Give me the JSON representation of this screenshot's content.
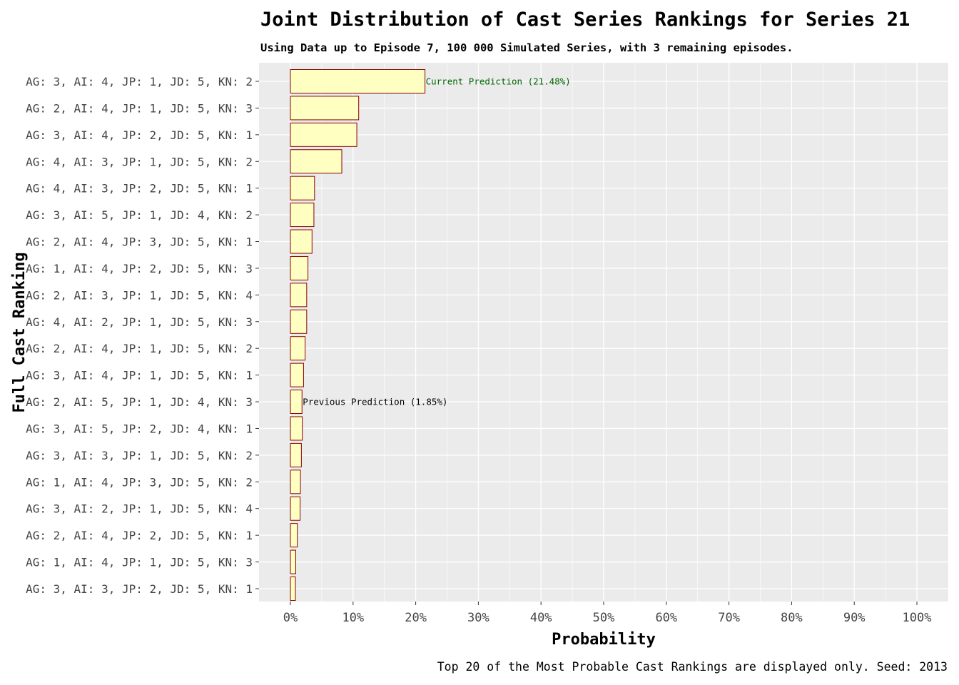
{
  "chart_data": {
    "type": "bar",
    "orientation": "horizontal",
    "title": "Joint Distribution of Cast Series Rankings for Series 21",
    "subtitle": "Using Data up to Episode 7, 100 000 Simulated Series, with 3 remaining episodes.",
    "caption": "Top 20 of the Most Probable Cast Rankings are displayed only. Seed: 2013",
    "xlabel": "Probability",
    "ylabel": "Full Cast Ranking",
    "xlim": [
      0,
      1
    ],
    "x_ticks": [
      0,
      0.1,
      0.2,
      0.3,
      0.4,
      0.5,
      0.6,
      0.7,
      0.8,
      0.9,
      1.0
    ],
    "x_tick_labels": [
      "0%",
      "10%",
      "20%",
      "30%",
      "40%",
      "50%",
      "60%",
      "70%",
      "80%",
      "90%",
      "100%"
    ],
    "categories": [
      "AG: 3, AI: 4, JP: 1, JD: 5, KN: 2",
      "AG: 2, AI: 4, JP: 1, JD: 5, KN: 3",
      "AG: 3, AI: 4, JP: 2, JD: 5, KN: 1",
      "AG: 4, AI: 3, JP: 1, JD: 5, KN: 2",
      "AG: 4, AI: 3, JP: 2, JD: 5, KN: 1",
      "AG: 3, AI: 5, JP: 1, JD: 4, KN: 2",
      "AG: 2, AI: 4, JP: 3, JD: 5, KN: 1",
      "AG: 1, AI: 4, JP: 2, JD: 5, KN: 3",
      "AG: 2, AI: 3, JP: 1, JD: 5, KN: 4",
      "AG: 4, AI: 2, JP: 1, JD: 5, KN: 3",
      "AG: 2, AI: 4, JP: 1, JD: 5, KN: 2",
      "AG: 3, AI: 4, JP: 1, JD: 5, KN: 1",
      "AG: 2, AI: 5, JP: 1, JD: 4, KN: 3",
      "AG: 3, AI: 5, JP: 2, JD: 4, KN: 1",
      "AG: 3, AI: 3, JP: 1, JD: 5, KN: 2",
      "AG: 1, AI: 4, JP: 3, JD: 5, KN: 2",
      "AG: 3, AI: 2, JP: 1, JD: 5, KN: 4",
      "AG: 2, AI: 4, JP: 2, JD: 5, KN: 1",
      "AG: 1, AI: 4, JP: 1, JD: 5, KN: 3",
      "AG: 3, AI: 3, JP: 2, JD: 5, KN: 1"
    ],
    "values": [
      0.2148,
      0.109,
      0.106,
      0.082,
      0.0385,
      0.0375,
      0.0345,
      0.028,
      0.026,
      0.026,
      0.0235,
      0.021,
      0.0185,
      0.019,
      0.0175,
      0.016,
      0.0155,
      0.011,
      0.0085,
      0.008
    ],
    "annotations": [
      {
        "category_index": 0,
        "text": "Current Prediction (21.48%)",
        "color": "#006400"
      },
      {
        "category_index": 12,
        "text": "Previous Prediction (1.85%)",
        "color": "#000000"
      }
    ],
    "colors": {
      "bar_fill": "#FFFFC2",
      "bar_stroke": "#8B0000",
      "panel_bg": "#EBEBEB",
      "grid": "#FFFFFF"
    },
    "grid": true,
    "legend": "none"
  }
}
